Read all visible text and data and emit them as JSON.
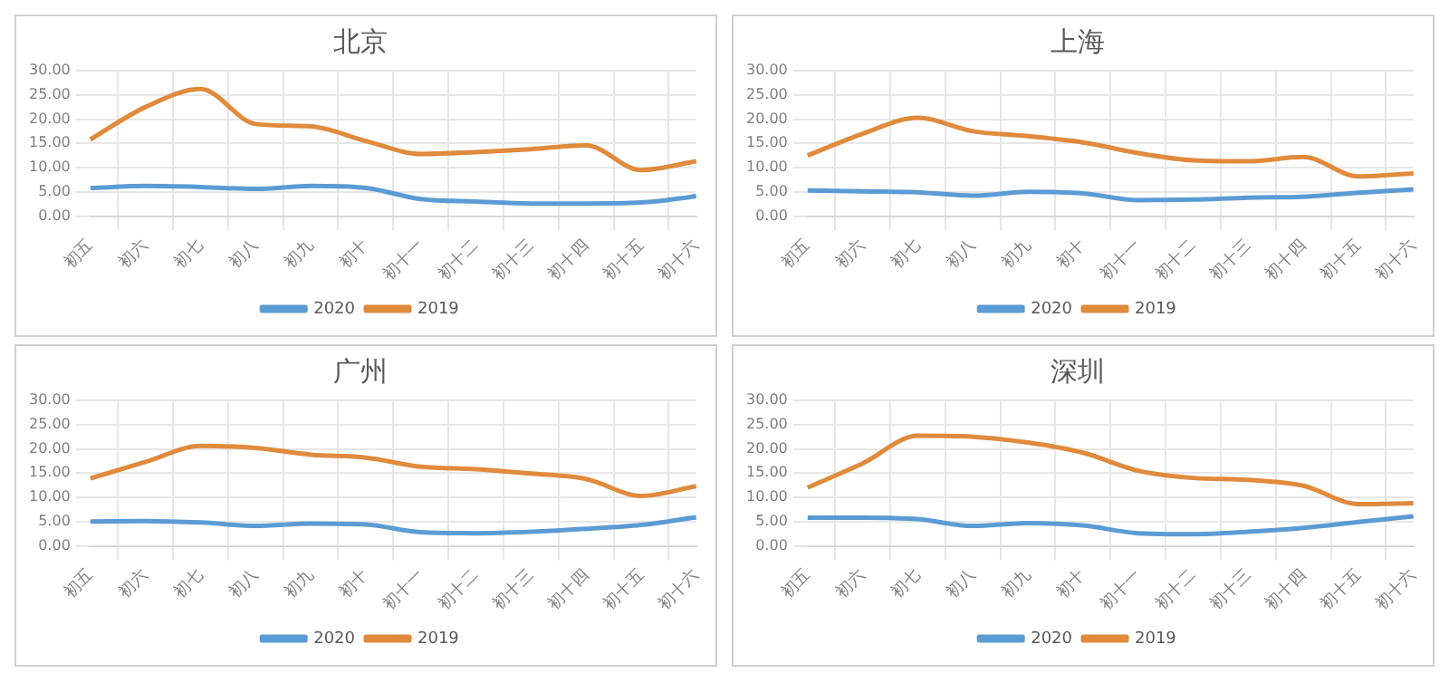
{
  "chart_data": [
    {
      "type": "line",
      "title": "北京",
      "categories": [
        "初五",
        "初六",
        "初七",
        "初八",
        "初九",
        "初十",
        "初十一",
        "初十二",
        "初十三",
        "初十四",
        "初十五",
        "初十六"
      ],
      "series": [
        {
          "name": "2020",
          "color": "#5b9bd5",
          "values": [
            5.8,
            6.2,
            6.0,
            5.6,
            6.2,
            5.8,
            3.5,
            3.0,
            2.6,
            2.6,
            2.8,
            4.1
          ]
        },
        {
          "name": "2019",
          "color": "#e08a3c",
          "values": [
            15.8,
            22.5,
            26.2,
            19.0,
            18.5,
            15.5,
            12.8,
            13.2,
            13.8,
            14.6,
            9.5,
            11.3
          ]
        }
      ],
      "ylim": [
        0,
        30
      ],
      "yticks": [
        {
          "value": 0,
          "label": "0.00"
        },
        {
          "value": 5,
          "label": "5.00"
        },
        {
          "value": 10,
          "label": "10.00"
        },
        {
          "value": 15,
          "label": "15.00"
        },
        {
          "value": 20,
          "label": "20.00"
        },
        {
          "value": 25,
          "label": "25.00"
        },
        {
          "value": 30,
          "label": "30.00"
        }
      ],
      "grid": true,
      "legend": "bottom",
      "marker": "none",
      "line_style": "solid"
    },
    {
      "type": "line",
      "title": "上海",
      "categories": [
        "初五",
        "初六",
        "初七",
        "初八",
        "初九",
        "初十",
        "初十一",
        "初十二",
        "初十三",
        "初十四",
        "初十五",
        "初十六"
      ],
      "series": [
        {
          "name": "2020",
          "color": "#5b9bd5",
          "values": [
            5.3,
            5.1,
            4.9,
            4.2,
            5.0,
            4.7,
            3.3,
            3.4,
            3.8,
            4.0,
            4.8,
            5.5
          ]
        },
        {
          "name": "2019",
          "color": "#e08a3c",
          "values": [
            12.5,
            17.0,
            20.3,
            17.5,
            16.5,
            15.2,
            13.0,
            11.5,
            11.3,
            12.2,
            8.2,
            8.8
          ]
        }
      ],
      "ylim": [
        0,
        30
      ],
      "yticks": [
        {
          "value": 0,
          "label": "0.00"
        },
        {
          "value": 5,
          "label": "5.00"
        },
        {
          "value": 10,
          "label": "10.00"
        },
        {
          "value": 15,
          "label": "15.00"
        },
        {
          "value": 20,
          "label": "20.00"
        },
        {
          "value": 25,
          "label": "25.00"
        },
        {
          "value": 30,
          "label": "30.00"
        }
      ],
      "grid": true,
      "legend": "bottom",
      "marker": "none",
      "line_style": "solid"
    },
    {
      "type": "line",
      "title": "广州",
      "categories": [
        "初五",
        "初六",
        "初七",
        "初八",
        "初九",
        "初十",
        "初十一",
        "初十二",
        "初十三",
        "初十四",
        "初十五",
        "初十六"
      ],
      "series": [
        {
          "name": "2020",
          "color": "#5b9bd5",
          "values": [
            5.0,
            5.1,
            4.8,
            4.1,
            4.6,
            4.4,
            2.8,
            2.6,
            2.9,
            3.5,
            4.3,
            5.9
          ]
        },
        {
          "name": "2019",
          "color": "#e08a3c",
          "values": [
            13.9,
            17.3,
            20.6,
            20.2,
            18.8,
            18.2,
            16.3,
            15.8,
            14.9,
            13.8,
            10.3,
            12.3
          ]
        }
      ],
      "ylim": [
        0,
        30
      ],
      "yticks": [
        {
          "value": 0,
          "label": "0.00"
        },
        {
          "value": 5,
          "label": "5.00"
        },
        {
          "value": 10,
          "label": "10.00"
        },
        {
          "value": 15,
          "label": "15.00"
        },
        {
          "value": 20,
          "label": "20.00"
        },
        {
          "value": 25,
          "label": "25.00"
        },
        {
          "value": 30,
          "label": "30.00"
        }
      ],
      "grid": true,
      "legend": "bottom",
      "marker": "none",
      "line_style": "solid"
    },
    {
      "type": "line",
      "title": "深圳",
      "categories": [
        "初五",
        "初六",
        "初七",
        "初八",
        "初九",
        "初十",
        "初十一",
        "初十二",
        "初十三",
        "初十四",
        "初十五",
        "初十六"
      ],
      "series": [
        {
          "name": "2020",
          "color": "#5b9bd5",
          "values": [
            5.8,
            5.8,
            5.5,
            4.1,
            4.7,
            4.2,
            2.6,
            2.4,
            2.9,
            3.7,
            4.9,
            6.1
          ]
        },
        {
          "name": "2019",
          "color": "#e08a3c",
          "values": [
            12.0,
            17.0,
            22.7,
            22.5,
            21.3,
            19.2,
            15.5,
            14.0,
            13.6,
            12.4,
            8.6,
            8.8
          ]
        }
      ],
      "ylim": [
        0,
        30
      ],
      "yticks": [
        {
          "value": 0,
          "label": "0.00"
        },
        {
          "value": 5,
          "label": "5.00"
        },
        {
          "value": 10,
          "label": "10.00"
        },
        {
          "value": 15,
          "label": "15.00"
        },
        {
          "value": 20,
          "label": "20.00"
        },
        {
          "value": 25,
          "label": "25.00"
        },
        {
          "value": 30,
          "label": "30.00"
        }
      ],
      "grid": true,
      "legend": "bottom",
      "marker": "none",
      "line_style": "solid"
    }
  ]
}
